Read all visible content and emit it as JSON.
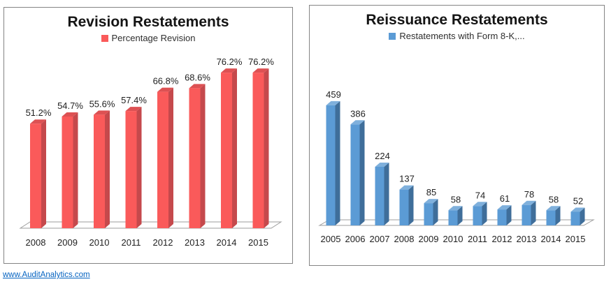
{
  "footer": {
    "link_label": "www.AuditAnalytics.com"
  },
  "colors": {
    "link": "#0563C1",
    "panel_border": "#848484",
    "floor_outline": "#9d9d9d",
    "label_text": "#1f1f1f"
  },
  "chart_data": [
    {
      "type": "bar",
      "style": "3d",
      "title": "Revision Restatements",
      "legend": "Percentage Revision",
      "legend_position": "top",
      "categories": [
        "2008",
        "2009",
        "2010",
        "2011",
        "2012",
        "2013",
        "2014",
        "2015"
      ],
      "values": [
        51.2,
        54.7,
        55.6,
        57.4,
        66.8,
        68.6,
        76.2,
        76.2
      ],
      "data_labels": [
        "51.2%",
        "54.7%",
        "55.6%",
        "57.4%",
        "66.8%",
        "68.6%",
        "76.2%",
        "76.2%"
      ],
      "xlabel": "",
      "ylabel": "",
      "ylim": [
        0,
        80
      ],
      "grid": false,
      "colors": {
        "front": "#FA5A5A",
        "side": "#C5494C",
        "top": "#DD5153"
      }
    },
    {
      "type": "bar",
      "style": "3d",
      "title": "Reissuance Restatements",
      "legend": "Restatements with Form 8-K,...",
      "legend_position": "top",
      "categories": [
        "2005",
        "2006",
        "2007",
        "2008",
        "2009",
        "2010",
        "2011",
        "2012",
        "2013",
        "2014",
        "2015"
      ],
      "values": [
        459,
        386,
        224,
        137,
        85,
        58,
        74,
        61,
        78,
        58,
        52
      ],
      "data_labels": [
        "459",
        "386",
        "224",
        "137",
        "85",
        "58",
        "74",
        "61",
        "78",
        "58",
        "52"
      ],
      "xlabel": "",
      "ylabel": "",
      "ylim": [
        0,
        500
      ],
      "grid": false,
      "colors": {
        "front": "#5B9BD5",
        "side": "#3F6E9A",
        "top": "#7FB0DC"
      }
    }
  ]
}
